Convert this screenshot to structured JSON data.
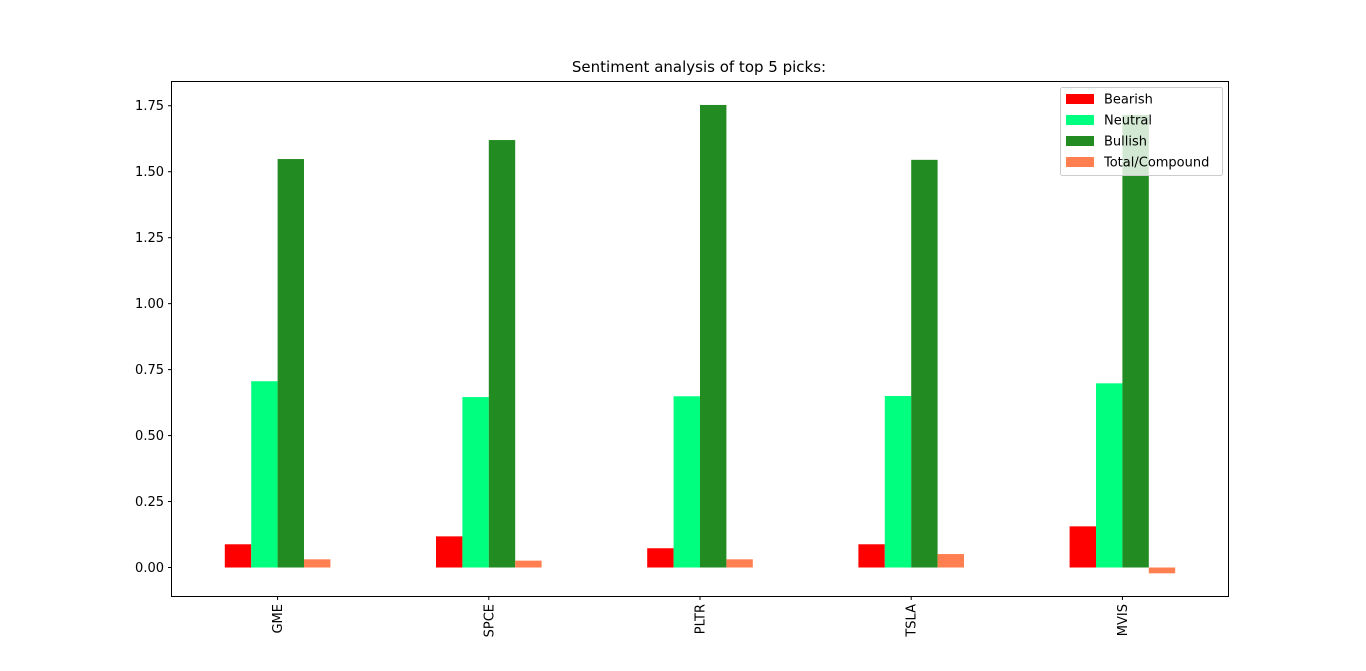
{
  "chart_data": {
    "type": "bar",
    "title": "Sentiment analysis of top 5 picks:",
    "xlabel": "",
    "ylabel": "",
    "categories": [
      "GME",
      "SPCE",
      "PLTR",
      "TSLA",
      "MVIS"
    ],
    "series": [
      {
        "name": "Bearish",
        "color": "#ff0000",
        "values": [
          0.088,
          0.118,
          0.073,
          0.088,
          0.156
        ]
      },
      {
        "name": "Neutral",
        "color": "#00ff7f",
        "values": [
          0.706,
          0.646,
          0.649,
          0.65,
          0.698
        ]
      },
      {
        "name": "Bullish",
        "color": "#228b22",
        "values": [
          1.548,
          1.62,
          1.753,
          1.545,
          1.715
        ]
      },
      {
        "name": "Total/Compound",
        "color": "#ff7f50",
        "values": [
          0.031,
          0.026,
          0.031,
          0.051,
          -0.022
        ]
      }
    ],
    "ylim": [
      -0.108,
      1.84
    ],
    "yticks": [
      "0.00",
      "0.25",
      "0.50",
      "0.75",
      "1.00",
      "1.25",
      "1.50",
      "1.75"
    ],
    "ytick_values": [
      0,
      0.25,
      0.5,
      0.75,
      1.0,
      1.25,
      1.5,
      1.75
    ],
    "grid": false,
    "legend_position": "top-right"
  }
}
